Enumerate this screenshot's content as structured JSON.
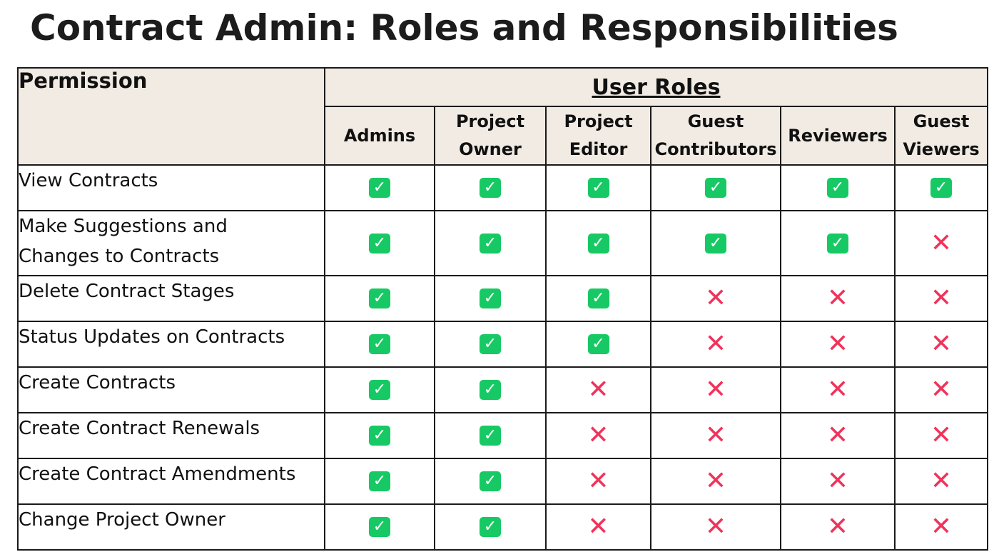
{
  "title": "Contract Admin: Roles and Responsibilities",
  "table": {
    "permission_header": "Permission",
    "user_roles_header": "User Roles",
    "roles": [
      "Admins",
      "Project\nOwner",
      "Project\nEditor",
      "Guest\nContributors",
      "Reviewers",
      "Guest\nViewers"
    ],
    "rows": [
      {
        "permission": "View Contracts",
        "access": [
          true,
          true,
          true,
          true,
          true,
          true
        ]
      },
      {
        "permission": "Make Suggestions and Changes to Contracts",
        "access": [
          true,
          true,
          true,
          true,
          true,
          false
        ]
      },
      {
        "permission": "Delete Contract Stages",
        "access": [
          true,
          true,
          true,
          false,
          false,
          false
        ]
      },
      {
        "permission": "Status Updates on Contracts",
        "access": [
          true,
          true,
          true,
          false,
          false,
          false
        ]
      },
      {
        "permission": "Create Contracts",
        "access": [
          true,
          true,
          false,
          false,
          false,
          false
        ]
      },
      {
        "permission": "Create Contract Renewals",
        "access": [
          true,
          true,
          false,
          false,
          false,
          false
        ]
      },
      {
        "permission": "Create Contract Amendments",
        "access": [
          true,
          true,
          false,
          false,
          false,
          false
        ]
      },
      {
        "permission": "Change Project Owner",
        "access": [
          true,
          true,
          false,
          false,
          false,
          false
        ]
      }
    ]
  },
  "icons": {
    "allowed": "check-square-icon",
    "denied": "cross-icon"
  },
  "colors": {
    "header_bg": "#f1ebe3",
    "check": "#17c964",
    "cross": "#f0335b"
  }
}
